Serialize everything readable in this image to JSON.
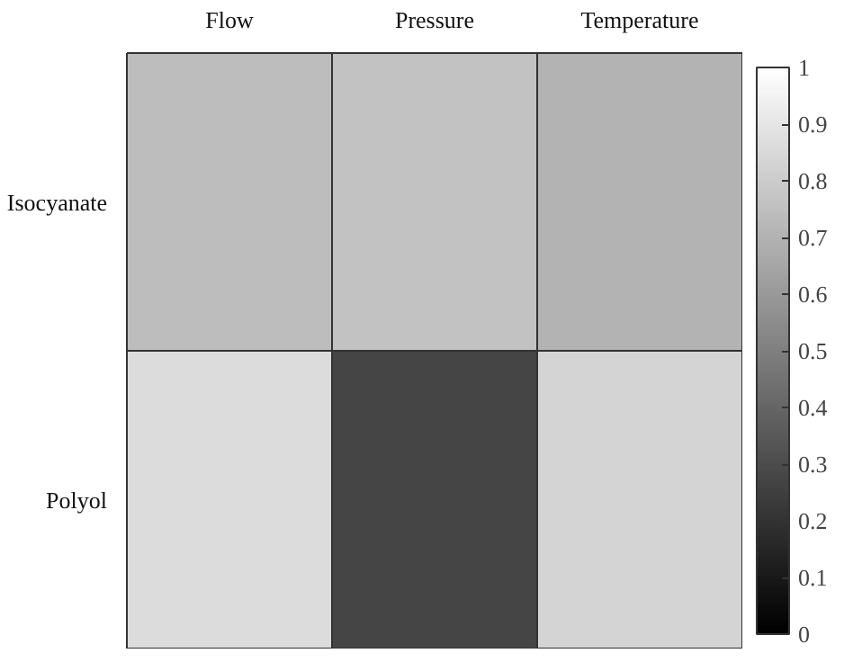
{
  "chart_data": {
    "type": "heatmap",
    "categories": [
      "Flow",
      "Pressure",
      "Temperature"
    ],
    "y_categories": [
      "Isocyanate",
      "Polyol"
    ],
    "cells": [
      [
        0.74,
        0.76,
        0.7
      ],
      [
        0.86,
        0.27,
        0.83
      ]
    ],
    "clim": [
      0,
      1
    ],
    "cticks": [
      0,
      0.1,
      0.2,
      0.3,
      0.4,
      0.5,
      0.6,
      0.7,
      0.8,
      0.9,
      1
    ]
  }
}
